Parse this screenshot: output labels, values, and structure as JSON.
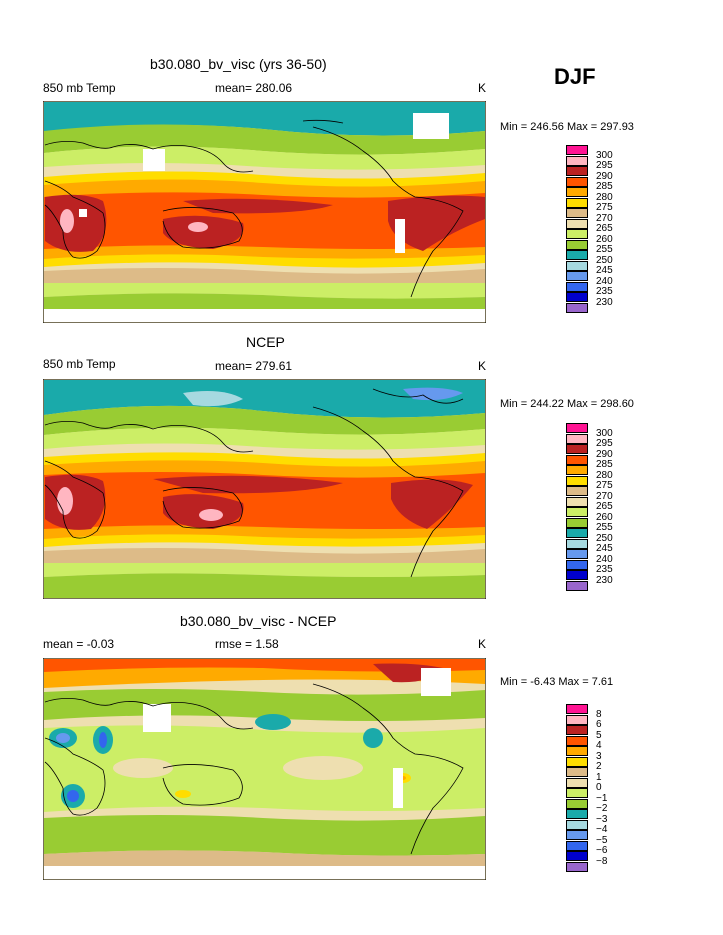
{
  "season": "DJF",
  "colors": {
    "t230": "#9966cc",
    "t235": "#0000cc",
    "t240": "#3366ee",
    "t245": "#6699ee",
    "t250": "#a6d9e0",
    "t255": "#1aaaaa",
    "t260": "#99cc33",
    "t265": "#ccee66",
    "t270": "#eedfb0",
    "t275": "#ddbb88",
    "t280": "#ffdd00",
    "t285": "#ffaa00",
    "t290": "#ff5500",
    "t295": "#bb2222",
    "t300": "#ffb6c1",
    "top": "#ff1493",
    "missing": "#ffffff",
    "coast": "#000000"
  },
  "panels": [
    {
      "title": "b30.080_bv_visc (yrs 36-50)",
      "left_label": "850 mb Temp",
      "center_label": "mean= 280.06",
      "right_label": "K",
      "minmax": "Min = 246.56 Max = 297.93"
    },
    {
      "title": "NCEP",
      "left_label": "850 mb Temp",
      "center_label": "mean= 279.61",
      "right_label": "K",
      "minmax": "Min = 244.22 Max = 298.60"
    },
    {
      "title": "b30.080_bv_visc - NCEP",
      "left_label": "mean =   -0.03",
      "center_label": "rmse =    1.58",
      "right_label": "K",
      "minmax": "Min =   -6.43 Max =    7.61"
    }
  ],
  "chart_data": [
    {
      "type": "heatmap",
      "title": "b30.080_bv_visc (yrs 36-50)",
      "variable": "850 mb Temp",
      "units": "K",
      "mean": 280.06,
      "min": 246.56,
      "max": 297.93,
      "legend_levels": [
        "300",
        "295",
        "290",
        "285",
        "280",
        "275",
        "270",
        "265",
        "260",
        "255",
        "250",
        "245",
        "240",
        "235",
        "230"
      ]
    },
    {
      "type": "heatmap",
      "title": "NCEP",
      "variable": "850 mb Temp",
      "units": "K",
      "mean": 279.61,
      "min": 244.22,
      "max": 298.6,
      "legend_levels": [
        "300",
        "295",
        "290",
        "285",
        "280",
        "275",
        "270",
        "265",
        "260",
        "255",
        "250",
        "245",
        "240",
        "235",
        "230"
      ]
    },
    {
      "type": "heatmap",
      "title": "b30.080_bv_visc - NCEP",
      "units": "K",
      "mean": -0.03,
      "rmse": 1.58,
      "min": -6.43,
      "max": 7.61,
      "legend_levels": [
        "8",
        "6",
        "5",
        "4",
        "3",
        "2",
        "1",
        "0",
        "−1",
        "−2",
        "−3",
        "−4",
        "−5",
        "−6",
        "−8"
      ]
    }
  ]
}
